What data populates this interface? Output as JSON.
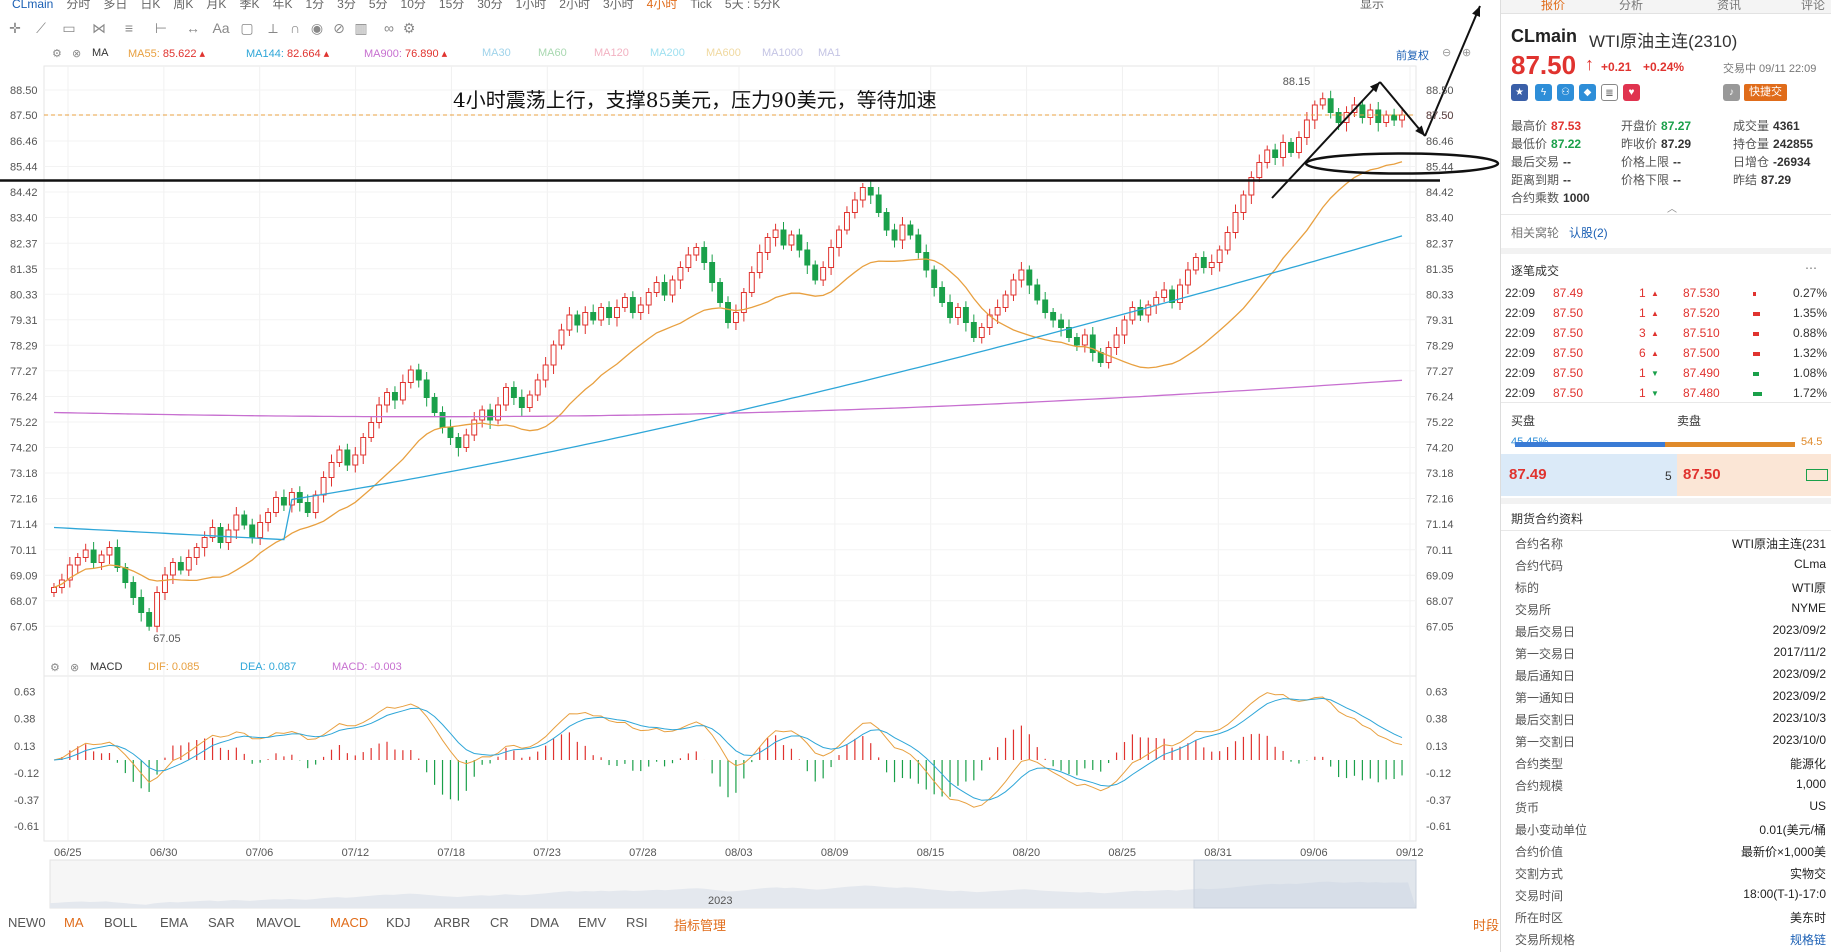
{
  "period_bar": {
    "symbol": "CLmain",
    "periods": [
      "分时",
      "多日",
      "日K",
      "周K",
      "月K",
      "季K",
      "年K",
      "1分",
      "3分",
      "5分",
      "10分",
      "15分",
      "30分",
      "1小时",
      "2小时",
      "3小时",
      "4小时",
      "Tick",
      "5天 : 5分K"
    ],
    "active_period": "4小时",
    "display_label": "显示"
  },
  "ma_legend": {
    "label": "MA",
    "items": [
      {
        "name": "MA55:",
        "value": "85.622",
        "color": "#e8a040"
      },
      {
        "name": "MA144:",
        "value": "82.664",
        "color": "#2ea6d8"
      },
      {
        "name": "MA900:",
        "value": "76.890",
        "color": "#c76fd0"
      },
      {
        "name": "MA30",
        "value": "",
        "color": "#9fd3ea"
      },
      {
        "name": "MA60",
        "value": "",
        "color": "#a8d8b0"
      },
      {
        "name": "MA120",
        "value": "",
        "color": "#f2b2c2"
      },
      {
        "name": "MA200",
        "value": "",
        "color": "#9fe0f0"
      },
      {
        "name": "MA600",
        "value": "",
        "color": "#f0d9a0"
      },
      {
        "name": "MA1000",
        "value": "",
        "color": "#c4c4e4"
      },
      {
        "name": "MA1",
        "value": "",
        "color": "#c4c4e4"
      }
    ],
    "restore_label": "前复权"
  },
  "annotation": "4小时震荡上行，支撑85美元，压力90美元，等待加速",
  "price_axis": [
    "88.50",
    "87.50",
    "86.46",
    "85.44",
    "84.42",
    "83.40",
    "82.37",
    "81.35",
    "80.33",
    "79.31",
    "78.29",
    "77.27",
    "76.24",
    "75.22",
    "74.20",
    "73.18",
    "72.16",
    "71.14",
    "70.11",
    "69.09",
    "68.07",
    "67.05"
  ],
  "high_label": "88.15",
  "low_label": "67.05",
  "macd_legend": {
    "label": "MACD",
    "dif": "DIF: 0.085",
    "dea": "DEA: 0.087",
    "macd": "MACD: -0.003"
  },
  "macd_axis": [
    "0.63",
    "0.38",
    "0.13",
    "-0.12",
    "-0.37",
    "-0.61"
  ],
  "date_axis": [
    "06/25",
    "06/30",
    "07/06",
    "07/12",
    "07/18",
    "07/23",
    "07/28",
    "08/03",
    "08/09",
    "08/15",
    "08/20",
    "08/25",
    "08/31",
    "09/06",
    "09/12"
  ],
  "navigator_year": "2023",
  "indicators": [
    "NEW0",
    "MA",
    "BOLL",
    "EMA",
    "SAR",
    "MAVOL",
    "MACD",
    "KDJ",
    "ARBR",
    "CR",
    "DMA",
    "EMV",
    "RSI",
    "指标管理"
  ],
  "indicators_active": [
    "MA",
    "MACD"
  ],
  "indicator_manage": "指标管理",
  "time_share_label": "时段",
  "right_panel": {
    "tabs": [
      "报价",
      "分析",
      "资讯",
      "评论"
    ],
    "code": "CLmain",
    "name": "WTI原油主连(2310)",
    "price": "87.50",
    "arrow": "↑",
    "change": "+0.21",
    "change_pct": "+0.24%",
    "trade_status": "交易中 09/11 22:09",
    "quick_trade": "快捷交",
    "stats": [
      {
        "k": "最高价",
        "v": "87.53",
        "cls": "red"
      },
      {
        "k": "开盘价",
        "v": "87.27",
        "cls": "green"
      },
      {
        "k": "成交量",
        "v": "4361",
        "cls": ""
      },
      {
        "k": "最低价",
        "v": "87.22",
        "cls": "green"
      },
      {
        "k": "昨收价",
        "v": "87.29",
        "cls": ""
      },
      {
        "k": "持仓量",
        "v": "242855",
        "cls": ""
      },
      {
        "k": "最后交易",
        "v": "--",
        "cls": ""
      },
      {
        "k": "价格上限",
        "v": "--",
        "cls": ""
      },
      {
        "k": "日增仓",
        "v": "-26934",
        "cls": ""
      },
      {
        "k": "距离到期",
        "v": "--",
        "cls": ""
      },
      {
        "k": "价格下限",
        "v": "--",
        "cls": ""
      },
      {
        "k": "昨结",
        "v": "87.29",
        "cls": ""
      },
      {
        "k": "合约乘数",
        "v": "1000",
        "cls": ""
      }
    ],
    "related_label": "相关窝轮",
    "related_link": "认股(2)",
    "ticks_title": "逐笔成交",
    "ticks": [
      {
        "time": "22:09",
        "price": "87.49",
        "vol": "1",
        "dir": "up",
        "bid": "87.530",
        "pct": "0.27%"
      },
      {
        "time": "22:09",
        "price": "87.50",
        "vol": "1",
        "dir": "up",
        "bid": "87.520",
        "pct": "1.35%"
      },
      {
        "time": "22:09",
        "price": "87.50",
        "vol": "3",
        "dir": "up",
        "bid": "87.510",
        "pct": "0.88%"
      },
      {
        "time": "22:09",
        "price": "87.50",
        "vol": "6",
        "dir": "up",
        "bid": "87.500",
        "pct": "1.32%"
      },
      {
        "time": "22:09",
        "price": "87.50",
        "vol": "1",
        "dir": "down",
        "bid": "87.490",
        "pct": "1.08%"
      },
      {
        "time": "22:09",
        "price": "87.50",
        "vol": "1",
        "dir": "down",
        "bid": "87.480",
        "pct": "1.72%"
      }
    ],
    "buy_label": "买盘",
    "sell_label": "卖盘",
    "buy_pct": "45.45%",
    "sell_pct": "54.5",
    "bid_price": "87.49",
    "bid_qty": "5",
    "ask_price": "87.50",
    "contract_title": "期货合约资料",
    "contract_info": [
      {
        "k": "合约名称",
        "v": "WTI原油主连(231"
      },
      {
        "k": "合约代码",
        "v": "CLma"
      },
      {
        "k": "标的",
        "v": "WTI原"
      },
      {
        "k": "交易所",
        "v": "NYME"
      },
      {
        "k": "最后交易日",
        "v": "2023/09/2"
      },
      {
        "k": "第一交易日",
        "v": "2017/11/2"
      },
      {
        "k": "最后通知日",
        "v": "2023/09/2"
      },
      {
        "k": "第一通知日",
        "v": "2023/09/2"
      },
      {
        "k": "最后交割日",
        "v": "2023/10/3"
      },
      {
        "k": "第一交割日",
        "v": "2023/10/0"
      },
      {
        "k": "合约类型",
        "v": "能源化"
      },
      {
        "k": "合约规模",
        "v": "1,000"
      },
      {
        "k": "货币",
        "v": "US"
      },
      {
        "k": "最小变动单位",
        "v": "0.01(美元/桶"
      },
      {
        "k": "合约价值",
        "v": "最新价×1,000美"
      },
      {
        "k": "交割方式",
        "v": "实物交"
      },
      {
        "k": "交易时间",
        "v": "18:00(T-1)-17:0"
      },
      {
        "k": "所在时区",
        "v": "美东时"
      },
      {
        "k": "交易所规格",
        "v": "规格链"
      }
    ]
  },
  "chart_data": {
    "type": "candlestick",
    "x_start": "06/23",
    "x_end": "09/12",
    "ylim": [
      66.5,
      88.9
    ],
    "close_series": [
      68.6,
      68.9,
      69.5,
      69.8,
      70.1,
      69.6,
      69.9,
      70.2,
      69.4,
      68.8,
      68.2,
      67.6,
      67.05,
      68.4,
      69.1,
      69.6,
      69.3,
      69.8,
      70.2,
      70.6,
      71.0,
      70.4,
      70.9,
      71.5,
      71.1,
      70.6,
      71.2,
      71.6,
      72.2,
      71.9,
      72.4,
      72.0,
      71.6,
      72.3,
      73.0,
      73.6,
      74.1,
      73.5,
      73.9,
      74.6,
      75.2,
      75.9,
      76.4,
      76.1,
      76.8,
      77.3,
      76.9,
      76.2,
      75.6,
      75.0,
      74.6,
      74.2,
      74.7,
      75.3,
      75.7,
      75.3,
      75.9,
      76.6,
      76.2,
      75.8,
      76.3,
      76.9,
      77.5,
      78.3,
      78.9,
      79.5,
      79.1,
      79.6,
      79.3,
      79.8,
      79.4,
      79.8,
      80.2,
      79.6,
      79.9,
      80.4,
      80.8,
      80.3,
      80.9,
      81.4,
      81.9,
      82.2,
      81.6,
      80.8,
      80.0,
      79.2,
      79.6,
      80.4,
      81.2,
      82.0,
      82.6,
      82.9,
      82.3,
      82.7,
      82.1,
      81.5,
      80.9,
      81.4,
      82.2,
      82.9,
      83.6,
      84.1,
      84.6,
      84.3,
      83.6,
      82.9,
      82.5,
      83.1,
      82.7,
      82.0,
      81.3,
      80.6,
      80.0,
      79.4,
      79.8,
      79.2,
      78.6,
      79.0,
      79.5,
      79.8,
      80.3,
      80.9,
      81.3,
      80.7,
      80.1,
      79.6,
      79.3,
      79.0,
      78.6,
      78.3,
      78.7,
      78.0,
      77.6,
      78.2,
      78.7,
      79.3,
      79.8,
      79.5,
      79.9,
      80.2,
      80.5,
      80.0,
      80.7,
      81.3,
      81.8,
      81.4,
      81.6,
      82.1,
      82.8,
      83.6,
      84.3,
      85.0,
      85.6,
      86.1,
      85.8,
      86.4,
      86.0,
      86.6,
      87.3,
      87.9,
      88.15,
      87.6,
      87.2,
      87.6,
      87.9,
      87.4,
      87.7,
      87.2,
      87.5,
      87.3,
      87.5
    ],
    "ma55_value": 85.622,
    "ma144_value": 82.664,
    "ma900_value": 76.89,
    "support_price": 85.0,
    "resistance_price": 90.0,
    "current_price": 87.5,
    "macd": {
      "dif": 0.085,
      "dea": 0.087,
      "macd": -0.003,
      "ylim": [
        -0.7,
        0.7
      ]
    }
  },
  "colors": {
    "up": "#e0332f",
    "down": "#1aa04a",
    "ma55": "#e8a040",
    "ma144": "#2ea6d8",
    "ma900": "#c76fd0",
    "accent": "#e06c1a"
  }
}
